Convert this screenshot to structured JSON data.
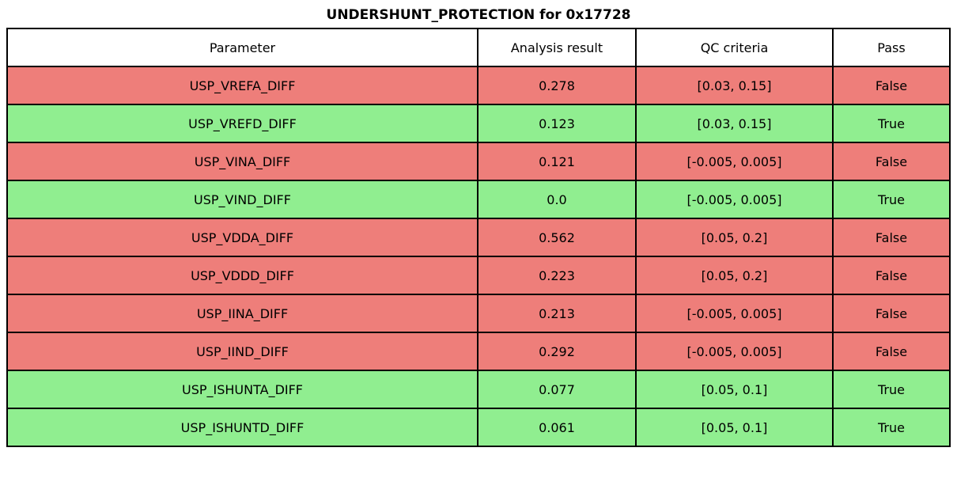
{
  "title": "UNDERSHUNT_PROTECTION for 0x17728",
  "colors": {
    "fail_bg": "#ee7e7a",
    "pass_bg": "#90ee90",
    "header_bg": "#ffffff",
    "border": "#000000",
    "text": "#000000"
  },
  "chart_data": {
    "type": "table",
    "title": "UNDERSHUNT_PROTECTION for 0x17728",
    "columns": [
      "Parameter",
      "Analysis result",
      "QC criteria",
      "Pass"
    ],
    "rows": [
      {
        "parameter": "USP_VREFA_DIFF",
        "analysis_result": "0.278",
        "qc_criteria": "[0.03, 0.15]",
        "pass": "False",
        "status": "fail"
      },
      {
        "parameter": "USP_VREFD_DIFF",
        "analysis_result": "0.123",
        "qc_criteria": "[0.03, 0.15]",
        "pass": "True",
        "status": "pass"
      },
      {
        "parameter": "USP_VINA_DIFF",
        "analysis_result": "0.121",
        "qc_criteria": "[-0.005, 0.005]",
        "pass": "False",
        "status": "fail"
      },
      {
        "parameter": "USP_VIND_DIFF",
        "analysis_result": "0.0",
        "qc_criteria": "[-0.005, 0.005]",
        "pass": "True",
        "status": "pass"
      },
      {
        "parameter": "USP_VDDA_DIFF",
        "analysis_result": "0.562",
        "qc_criteria": "[0.05, 0.2]",
        "pass": "False",
        "status": "fail"
      },
      {
        "parameter": "USP_VDDD_DIFF",
        "analysis_result": "0.223",
        "qc_criteria": "[0.05, 0.2]",
        "pass": "False",
        "status": "fail"
      },
      {
        "parameter": "USP_IINA_DIFF",
        "analysis_result": "0.213",
        "qc_criteria": "[-0.005, 0.005]",
        "pass": "False",
        "status": "fail"
      },
      {
        "parameter": "USP_IIND_DIFF",
        "analysis_result": "0.292",
        "qc_criteria": "[-0.005, 0.005]",
        "pass": "False",
        "status": "fail"
      },
      {
        "parameter": "USP_ISHUNTA_DIFF",
        "analysis_result": "0.077",
        "qc_criteria": "[0.05, 0.1]",
        "pass": "True",
        "status": "pass"
      },
      {
        "parameter": "USP_ISHUNTD_DIFF",
        "analysis_result": "0.061",
        "qc_criteria": "[0.05, 0.1]",
        "pass": "True",
        "status": "pass"
      }
    ]
  }
}
